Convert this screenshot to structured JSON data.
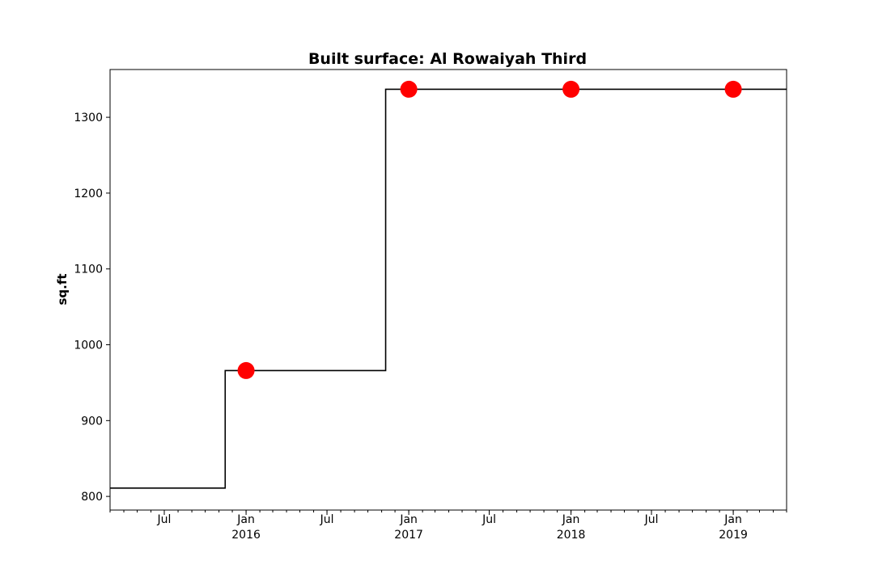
{
  "chart_data": {
    "type": "line",
    "title": "Built surface: Al Rowaiyah Third",
    "xlabel": "",
    "ylabel": "sq.ft",
    "xlim": [
      "2015-03-01",
      "2019-05-01"
    ],
    "ylim": [
      782,
      1363
    ],
    "grid": false,
    "legend": "none",
    "step": {
      "style": "post",
      "color": "#000000",
      "x": [
        "2015-03-01",
        "2015-11-15",
        "2016-11-10",
        "2019-05-01"
      ],
      "y": [
        811,
        966,
        1337,
        1337
      ]
    },
    "markers": {
      "color": "#ff0000",
      "x": [
        "2016-01-01",
        "2017-01-01",
        "2018-01-01",
        "2019-01-01"
      ],
      "y": [
        966,
        1337,
        1337,
        1337
      ]
    },
    "y_ticks": [
      {
        "value": 800,
        "label": "800"
      },
      {
        "value": 900,
        "label": "900"
      },
      {
        "value": 1000,
        "label": "1000"
      },
      {
        "value": 1100,
        "label": "1100"
      },
      {
        "value": 1200,
        "label": "1200"
      },
      {
        "value": 1300,
        "label": "1300"
      }
    ],
    "x_major_ticks": [
      {
        "date": "2015-07-01",
        "label": "Jul",
        "sublabel": ""
      },
      {
        "date": "2016-01-01",
        "label": "Jan",
        "sublabel": "2016"
      },
      {
        "date": "2016-07-01",
        "label": "Jul",
        "sublabel": ""
      },
      {
        "date": "2017-01-01",
        "label": "Jan",
        "sublabel": "2017"
      },
      {
        "date": "2017-07-01",
        "label": "Jul",
        "sublabel": ""
      },
      {
        "date": "2018-01-01",
        "label": "Jan",
        "sublabel": "2018"
      },
      {
        "date": "2018-07-01",
        "label": "Jul",
        "sublabel": ""
      },
      {
        "date": "2019-01-01",
        "label": "Jan",
        "sublabel": "2019"
      }
    ]
  }
}
